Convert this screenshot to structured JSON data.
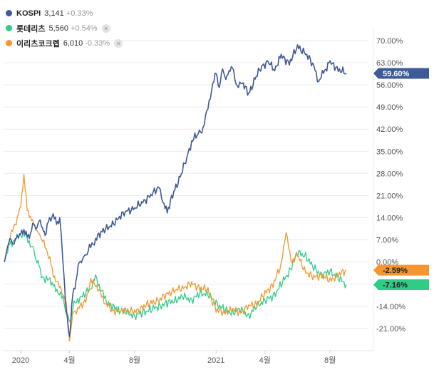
{
  "legend": [
    {
      "name": "KOSPI",
      "price": "3,141",
      "change": "+0.33%",
      "color": "#3e5a97",
      "removable": false
    },
    {
      "name": "롯데리츠",
      "price": "5,560",
      "change": "+0.54%",
      "color": "#2ecc87",
      "removable": true
    },
    {
      "name": "이리츠코크렙",
      "price": "6,010",
      "change": "-0.33%",
      "color": "#f5962e",
      "removable": true
    }
  ],
  "close_symbol": "×",
  "chart_data": {
    "type": "line",
    "title": "",
    "x_ticks": [
      "2020",
      "4월",
      "8월",
      "2021",
      "4월",
      "8월"
    ],
    "x_tick_months": [
      0,
      3,
      7,
      12,
      15,
      19
    ],
    "y_ticks": [
      "70.00%",
      "63.00%",
      "56.00%",
      "49.00%",
      "42.00%",
      "35.00%",
      "28.00%",
      "21.00%",
      "14.00%",
      "7.00%",
      "0.00%",
      "-7.00%",
      "-14.00%",
      "-21.00%"
    ],
    "y_tick_values": [
      70,
      63,
      56,
      49,
      42,
      35,
      28,
      21,
      14,
      7,
      0,
      -7,
      -14,
      -21
    ],
    "ylim": [
      -28,
      72
    ],
    "xlim_months": [
      -1.05,
      21.4
    ],
    "series": [
      {
        "name": "KOSPI",
        "color": "#3e5a97",
        "last_label": "59.60%",
        "x": [
          -1.0,
          -0.8,
          -0.6,
          -0.4,
          -0.2,
          0.0,
          0.2,
          0.4,
          0.6,
          0.8,
          1.0,
          1.2,
          1.4,
          1.5,
          1.7,
          2.0,
          2.2,
          2.4,
          2.5,
          2.6,
          2.7,
          2.8,
          3.0,
          3.2,
          3.4,
          3.6,
          3.8,
          4.0,
          4.3,
          4.6,
          5.0,
          5.5,
          6.0,
          6.5,
          7.0,
          7.5,
          8.0,
          8.5,
          8.8,
          9.0,
          9.4,
          9.8,
          10.2,
          10.5,
          10.9,
          11.2,
          11.5,
          11.8,
          12.0,
          12.2,
          12.4,
          12.6,
          12.8,
          13.0,
          13.3,
          13.6,
          14.0,
          14.4,
          14.8,
          15.2,
          15.6,
          16.0,
          16.5,
          17.0,
          17.5,
          18.0,
          18.3,
          18.6,
          19.0,
          19.5,
          20.0
        ],
        "values": [
          0,
          5,
          7,
          6,
          8,
          9,
          10,
          8,
          9,
          12,
          11,
          13,
          10,
          8,
          13,
          15,
          12,
          14,
          8,
          0,
          -8,
          -15,
          -24,
          -10,
          -6,
          0,
          1,
          2,
          5,
          7,
          10,
          11,
          14,
          16,
          17,
          19,
          21,
          24,
          18,
          16,
          22,
          27,
          33,
          38,
          41,
          42,
          49,
          56,
          60,
          55,
          61,
          58,
          60,
          62,
          55,
          57,
          53,
          58,
          62,
          63,
          61,
          65,
          63,
          68,
          66,
          62,
          57,
          60,
          63,
          61,
          59.6
        ]
      },
      {
        "name": "롯데리츠",
        "color": "#2ecc87",
        "last_label": "-7.16%",
        "x": [
          -1.0,
          -0.8,
          -0.6,
          -0.3,
          0.0,
          0.3,
          0.6,
          0.8,
          1.0,
          1.2,
          1.5,
          1.8,
          2.0,
          2.3,
          2.6,
          2.8,
          3.0,
          3.2,
          3.5,
          4.0,
          4.3,
          4.6,
          4.9,
          5.2,
          5.6,
          6.0,
          6.5,
          7.0,
          7.5,
          8.0,
          8.5,
          9.0,
          9.5,
          10.0,
          10.5,
          11.0,
          11.5,
          12.0,
          12.5,
          13.0,
          13.5,
          14.0,
          14.5,
          15.0,
          15.5,
          16.0,
          16.5,
          17.0,
          17.5,
          18.0,
          18.5,
          19.0,
          19.5,
          20.0
        ],
        "values": [
          0,
          4,
          6,
          7,
          9,
          8,
          6,
          3,
          1,
          -3,
          -6,
          -5,
          -8,
          -9,
          -12,
          -15,
          -20,
          -14,
          -12,
          -10,
          -8,
          -5,
          -8,
          -12,
          -14,
          -15,
          -16,
          -17,
          -16,
          -15,
          -14,
          -13,
          -12,
          -11,
          -12,
          -10,
          -10,
          -13,
          -15,
          -16,
          -15,
          -17,
          -14,
          -12,
          -11,
          -7,
          -3,
          3,
          2,
          -2,
          -4,
          -3,
          -5,
          -7.16
        ]
      },
      {
        "name": "이리츠코크렙",
        "color": "#f5962e",
        "last_label": "-2.59%",
        "x": [
          -1.0,
          -0.8,
          -0.5,
          -0.2,
          0.0,
          0.2,
          0.4,
          0.6,
          0.8,
          1.0,
          1.2,
          1.5,
          1.8,
          2.0,
          2.3,
          2.6,
          2.8,
          3.0,
          3.2,
          3.5,
          4.0,
          4.3,
          4.6,
          4.9,
          5.2,
          5.6,
          6.0,
          6.5,
          7.0,
          7.5,
          8.0,
          8.5,
          9.0,
          9.5,
          10.0,
          10.5,
          11.0,
          11.5,
          12.0,
          12.5,
          13.0,
          13.5,
          14.0,
          14.5,
          15.0,
          15.5,
          16.0,
          16.3,
          16.6,
          17.0,
          17.5,
          18.0,
          18.5,
          19.0,
          19.5,
          20.0
        ],
        "values": [
          0,
          5,
          10,
          14,
          18,
          27,
          17,
          14,
          12,
          10,
          8,
          5,
          1,
          -4,
          -7,
          -10,
          -13,
          -25,
          -16,
          -15,
          -12,
          -6,
          -7,
          -10,
          -13,
          -15,
          -16,
          -15,
          -16,
          -14,
          -13,
          -12,
          -10,
          -9,
          -8,
          -7,
          -8,
          -9,
          -15,
          -16,
          -15,
          -16,
          -14,
          -13,
          -10,
          -7,
          -1,
          10,
          0,
          2,
          -3,
          -5,
          -4,
          -6,
          -4,
          -2.59
        ]
      }
    ]
  }
}
